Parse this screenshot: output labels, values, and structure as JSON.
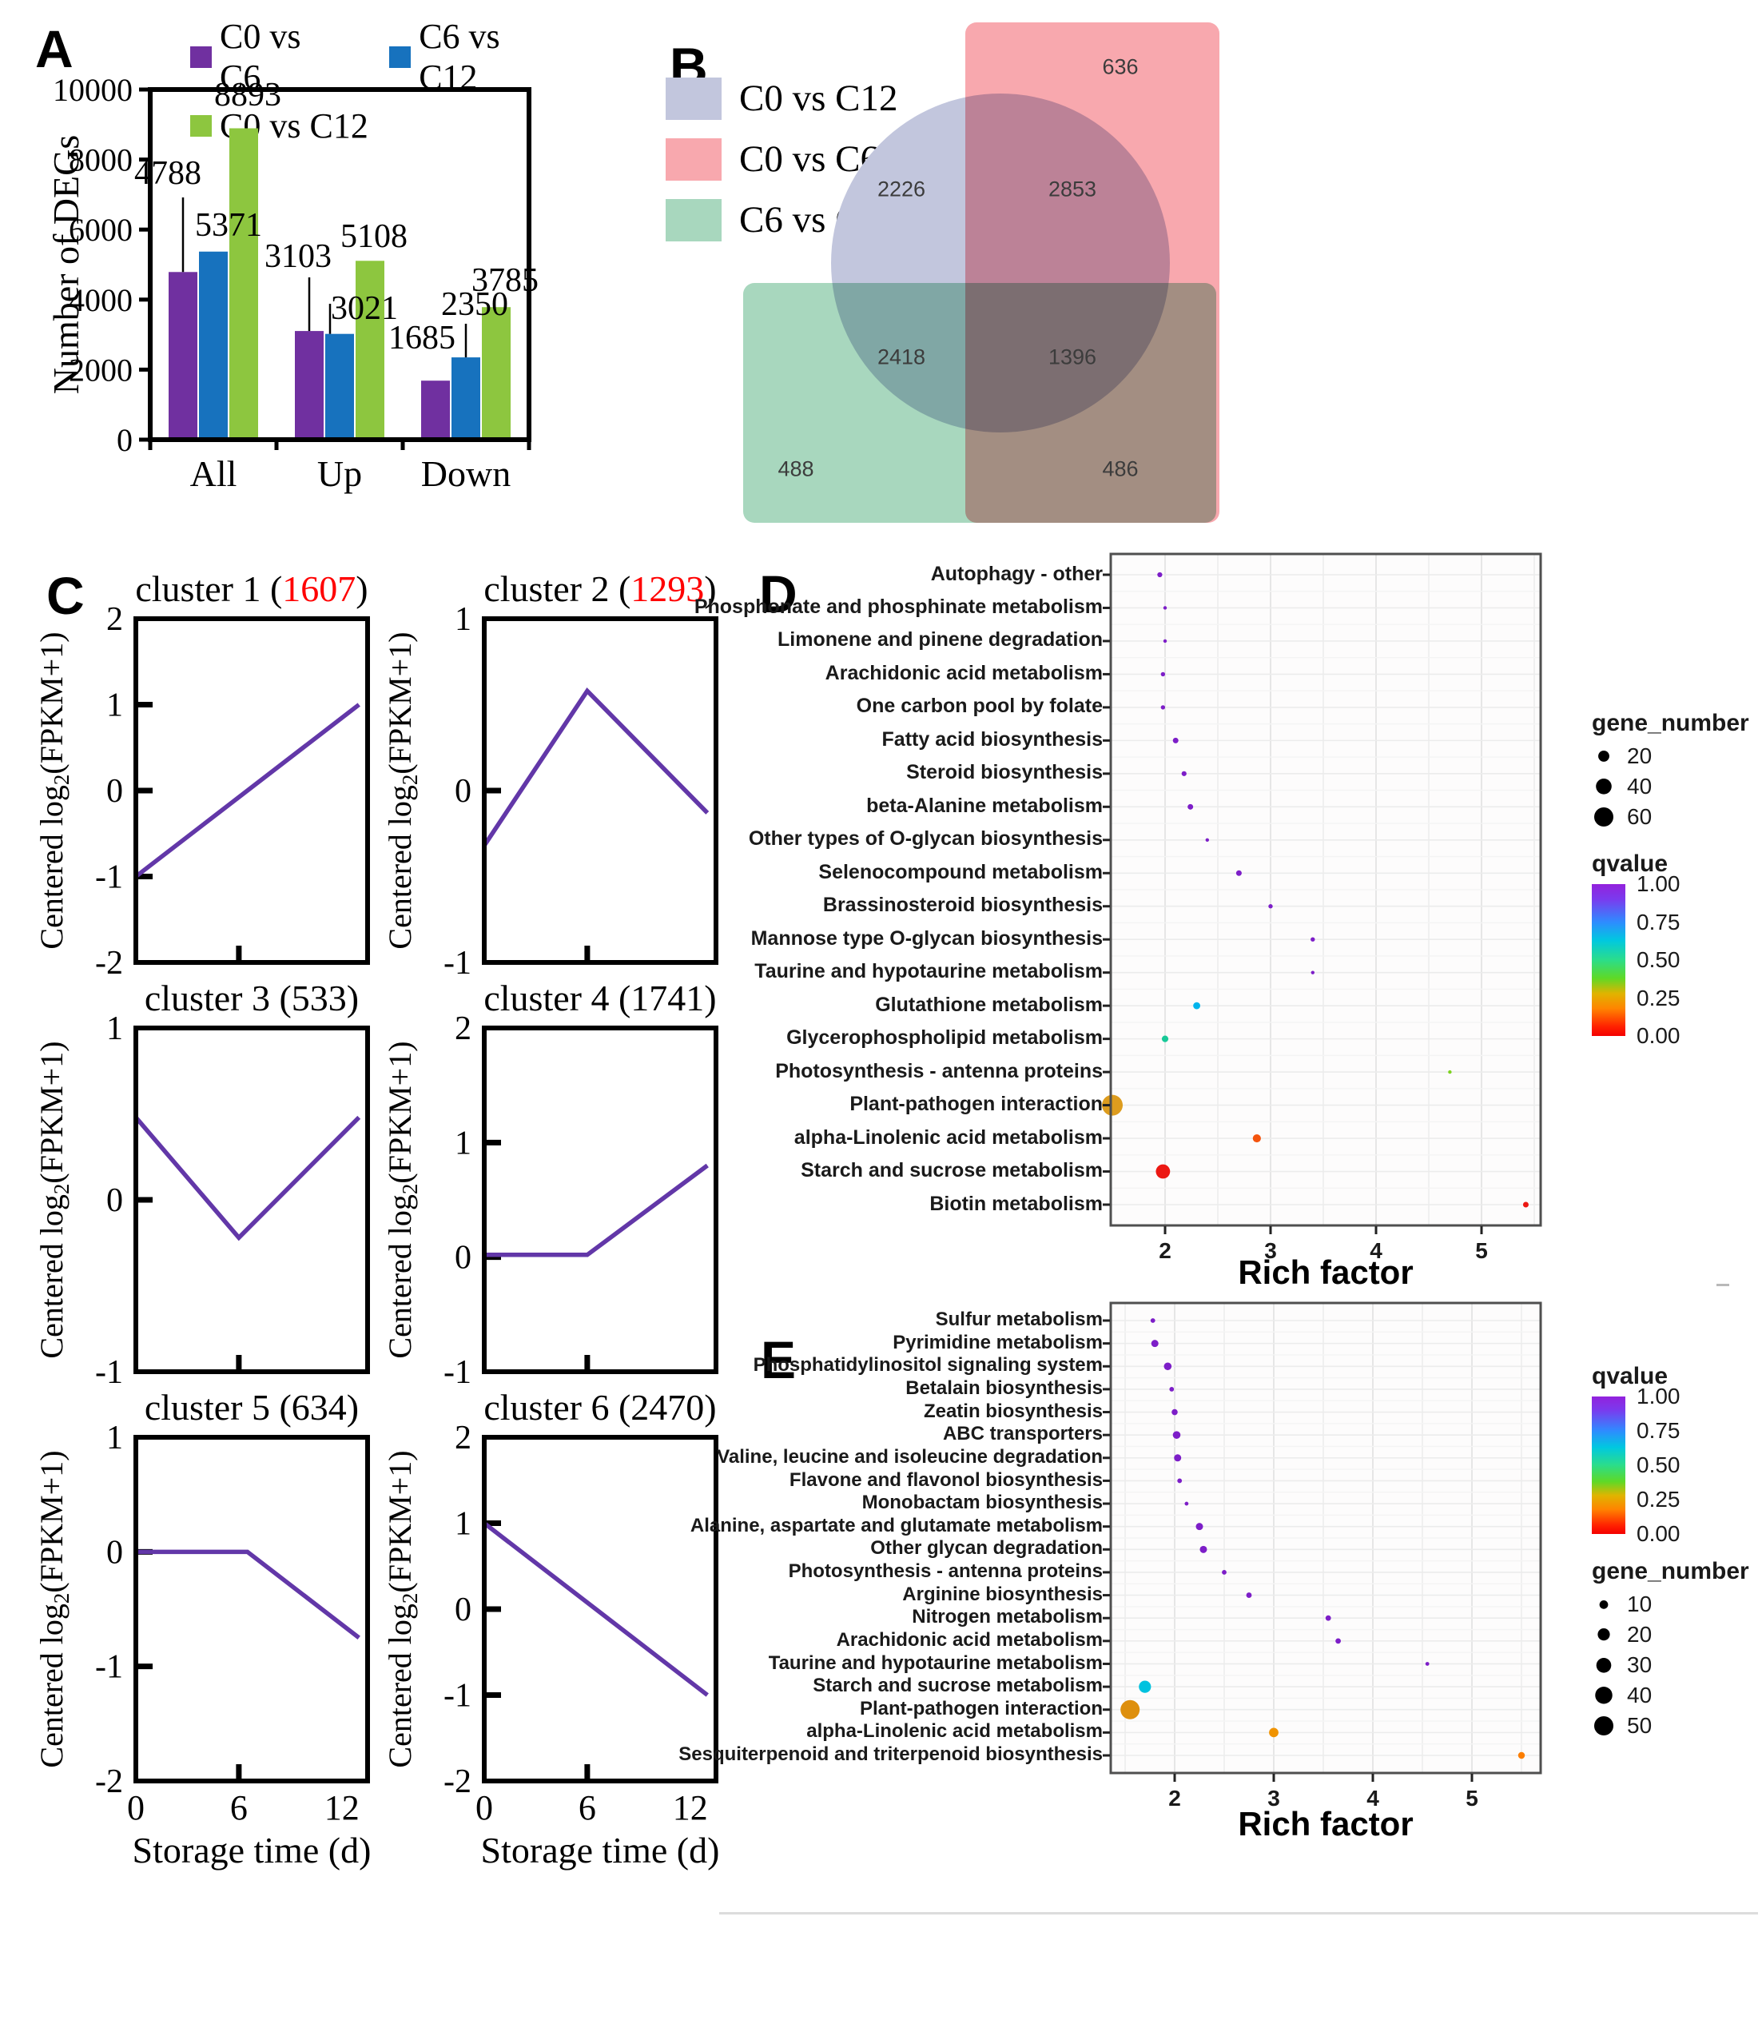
{
  "chart_data": [
    {
      "panel": "A",
      "type": "bar",
      "ylabel": "Number of DEGs",
      "ylim": [
        0,
        10000
      ],
      "yticks": [
        0,
        2000,
        4000,
        6000,
        8000,
        10000
      ],
      "categories": [
        "All",
        "Up",
        "Down"
      ],
      "series": [
        {
          "name": "C0 vs C6",
          "color": "#7030A0",
          "values": [
            4788,
            3103,
            1685
          ]
        },
        {
          "name": "C6 vs C12",
          "color": "#1772BE",
          "values": [
            5371,
            3021,
            2350
          ]
        },
        {
          "name": "C0 vs C12",
          "color": "#8DC63F",
          "values": [
            8893,
            5108,
            3785
          ]
        }
      ],
      "grid": false,
      "legend_position": "top"
    },
    {
      "panel": "B",
      "type": "venn",
      "legend": [
        {
          "label": "C0 vs C12",
          "color": "#C2C6DD"
        },
        {
          "label": "C0 vs C6",
          "color": "#F8A8AE"
        },
        {
          "label": "C6 vs C12",
          "color": "#A8D7BE"
        }
      ],
      "regions": [
        {
          "sets": [
            "C0 vs C6"
          ],
          "value": 636
        },
        {
          "sets": [
            "C0 vs C12"
          ],
          "value": 2226
        },
        {
          "sets": [
            "C0 vs C12",
            "C0 vs C6"
          ],
          "value": 2853
        },
        {
          "sets": [
            "C0 vs C12",
            "C6 vs C12"
          ],
          "value": 2418
        },
        {
          "sets": [
            "C0 vs C12",
            "C0 vs C6",
            "C6 vs C12"
          ],
          "value": 1396
        },
        {
          "sets": [
            "C6 vs C12"
          ],
          "value": 488
        },
        {
          "sets": [
            "C0 vs C6",
            "C6 vs C12"
          ],
          "value": 486
        }
      ]
    },
    {
      "panel": "C",
      "type": "line",
      "xlabel": "Storage time (d)",
      "ylabel": "Centered log2(FPKM+1)",
      "xlim": [
        0,
        13.5
      ],
      "xticks": [
        0,
        6,
        12
      ],
      "line_color": "#6237A8",
      "clusters": [
        {
          "name": "cluster 1",
          "count": "1607",
          "count_color": "#FF0000",
          "ylim": [
            -2,
            2
          ],
          "yticks": [
            -2,
            -1,
            0,
            1,
            2
          ],
          "points": [
            [
              0,
              -1
            ],
            [
              13,
              1
            ]
          ]
        },
        {
          "name": "cluster 2",
          "count": "1293",
          "count_color": "#FF0000",
          "ylim": [
            -1,
            1
          ],
          "yticks": [
            -1,
            0,
            1
          ],
          "points": [
            [
              0,
              -0.32
            ],
            [
              6,
              0.58
            ],
            [
              13,
              -0.13
            ]
          ]
        },
        {
          "name": "cluster 3",
          "count": "533",
          "count_color": "#000000",
          "ylim": [
            -1,
            1
          ],
          "yticks": [
            -1,
            0,
            1
          ],
          "points": [
            [
              0,
              0.48
            ],
            [
              6,
              -0.22
            ],
            [
              13,
              0.48
            ]
          ]
        },
        {
          "name": "cluster 4",
          "count": "1741",
          "count_color": "#000000",
          "ylim": [
            -1,
            2
          ],
          "yticks": [
            -1,
            0,
            1,
            2
          ],
          "points": [
            [
              0,
              0.02
            ],
            [
              6,
              0.02
            ],
            [
              13,
              0.8
            ]
          ]
        },
        {
          "name": "cluster 5",
          "count": "634",
          "count_color": "#000000",
          "ylim": [
            -2,
            1
          ],
          "yticks": [
            -2,
            -1,
            0,
            1
          ],
          "points": [
            [
              0,
              0
            ],
            [
              6.5,
              0
            ],
            [
              13,
              -0.75
            ]
          ]
        },
        {
          "name": "cluster 6",
          "count": "2470",
          "count_color": "#000000",
          "ylim": [
            -2,
            2
          ],
          "yticks": [
            -2,
            -1,
            0,
            1,
            2
          ],
          "points": [
            [
              0,
              1
            ],
            [
              13,
              -1
            ]
          ]
        }
      ]
    },
    {
      "panel": "D",
      "type": "scatter",
      "xlabel": "Rich factor",
      "xticks": [
        2,
        3,
        4,
        5
      ],
      "size_legend": {
        "title": "gene_number",
        "sizes": [
          20,
          40,
          60
        ]
      },
      "color_legend": {
        "title": "qvalue",
        "ticks": [
          "1.00",
          "0.75",
          "0.50",
          "0.25",
          "0.00"
        ]
      },
      "pathways": [
        {
          "label": "Autophagy - other",
          "rich_factor": 1.95,
          "gene_number": 4,
          "qvalue": 0.95,
          "color": "#7D1EC8"
        },
        {
          "label": "Phosphonate and phosphinate metabolism",
          "rich_factor": 2.0,
          "gene_number": 2,
          "qvalue": 0.95,
          "color": "#7D1EC8"
        },
        {
          "label": "Limonene and pinene degradation",
          "rich_factor": 2.0,
          "gene_number": 2,
          "qvalue": 0.95,
          "color": "#7D1EC8"
        },
        {
          "label": "Arachidonic acid metabolism",
          "rich_factor": 1.98,
          "gene_number": 3,
          "qvalue": 0.95,
          "color": "#7D1EC8"
        },
        {
          "label": "One carbon pool by folate",
          "rich_factor": 1.98,
          "gene_number": 3,
          "qvalue": 0.95,
          "color": "#7D1EC8"
        },
        {
          "label": "Fatty acid biosynthesis",
          "rich_factor": 2.1,
          "gene_number": 5,
          "qvalue": 0.9,
          "color": "#7D1EC8"
        },
        {
          "label": "Steroid biosynthesis",
          "rich_factor": 2.18,
          "gene_number": 4,
          "qvalue": 0.9,
          "color": "#7D1EC8"
        },
        {
          "label": "beta-Alanine metabolism",
          "rich_factor": 2.24,
          "gene_number": 5,
          "qvalue": 0.9,
          "color": "#7D1EC8"
        },
        {
          "label": "Other types of O-glycan biosynthesis",
          "rich_factor": 2.4,
          "gene_number": 2,
          "qvalue": 0.95,
          "color": "#7D1EC8"
        },
        {
          "label": "Selenocompound metabolism",
          "rich_factor": 2.7,
          "gene_number": 5,
          "qvalue": 0.9,
          "color": "#7D1EC8"
        },
        {
          "label": "Brassinosteroid biosynthesis",
          "rich_factor": 3.0,
          "gene_number": 3,
          "qvalue": 0.9,
          "color": "#7D1EC8"
        },
        {
          "label": "Mannose type O-glycan biosynthesis",
          "rich_factor": 3.4,
          "gene_number": 3,
          "qvalue": 0.9,
          "color": "#7D1EC8"
        },
        {
          "label": "Taurine and hypotaurine metabolism",
          "rich_factor": 3.4,
          "gene_number": 2,
          "qvalue": 0.9,
          "color": "#7D1EC8"
        },
        {
          "label": "Glutathione metabolism",
          "rich_factor": 2.3,
          "gene_number": 8,
          "qvalue": 0.62,
          "color": "#00B4EC"
        },
        {
          "label": "Glycerophospholipid metabolism",
          "rich_factor": 2.0,
          "gene_number": 7,
          "qvalue": 0.5,
          "color": "#17C998"
        },
        {
          "label": "Photosynthesis - antenna proteins",
          "rich_factor": 4.7,
          "gene_number": 2,
          "qvalue": 0.3,
          "color": "#7ED321"
        },
        {
          "label": "Plant-pathogen interaction",
          "rich_factor": 1.5,
          "gene_number": 70,
          "qvalue": 0.13,
          "color": "#DD9C1E"
        },
        {
          "label": "alpha-Linolenic acid metabolism",
          "rich_factor": 2.87,
          "gene_number": 11,
          "qvalue": 0.06,
          "color": "#F4540E"
        },
        {
          "label": "Starch and sucrose metabolism",
          "rich_factor": 1.98,
          "gene_number": 33,
          "qvalue": 0.01,
          "color": "#EC1813"
        },
        {
          "label": "Biotin metabolism",
          "rich_factor": 5.42,
          "gene_number": 5,
          "qvalue": 0.01,
          "color": "#EC1813"
        }
      ]
    },
    {
      "panel": "E",
      "type": "scatter",
      "xlabel": "Rich factor",
      "xticks": [
        2,
        3,
        4,
        5
      ],
      "size_legend": {
        "title": "gene_number",
        "sizes": [
          10,
          20,
          30,
          40,
          50
        ]
      },
      "color_legend": {
        "title": "qvalue",
        "ticks": [
          "1.00",
          "0.75",
          "0.50",
          "0.25",
          "0.00"
        ]
      },
      "pathways": [
        {
          "label": "Sulfur metabolism",
          "rich_factor": 1.78,
          "gene_number": 3,
          "qvalue": 0.95,
          "color": "#7D1EC8"
        },
        {
          "label": "Pyrimidine metabolism",
          "rich_factor": 1.8,
          "gene_number": 7,
          "qvalue": 0.95,
          "color": "#7D1EC8"
        },
        {
          "label": "Phosphatidylinositol signaling system",
          "rich_factor": 1.93,
          "gene_number": 8,
          "qvalue": 0.95,
          "color": "#7D1EC8"
        },
        {
          "label": "Betalain biosynthesis",
          "rich_factor": 1.97,
          "gene_number": 3,
          "qvalue": 0.95,
          "color": "#7D1EC8"
        },
        {
          "label": "Zeatin biosynthesis",
          "rich_factor": 2.0,
          "gene_number": 5,
          "qvalue": 0.95,
          "color": "#7D1EC8"
        },
        {
          "label": "ABC transporters",
          "rich_factor": 2.02,
          "gene_number": 8,
          "qvalue": 0.95,
          "color": "#7D1EC8"
        },
        {
          "label": "Valine, leucine and isoleucine degradation",
          "rich_factor": 2.03,
          "gene_number": 7,
          "qvalue": 0.95,
          "color": "#7D1EC8"
        },
        {
          "label": "Flavone and flavonol biosynthesis",
          "rich_factor": 2.05,
          "gene_number": 3,
          "qvalue": 0.95,
          "color": "#7D1EC8"
        },
        {
          "label": "Monobactam biosynthesis",
          "rich_factor": 2.12,
          "gene_number": 2,
          "qvalue": 0.95,
          "color": "#7D1EC8"
        },
        {
          "label": "Alanine, aspartate and glutamate metabolism",
          "rich_factor": 2.25,
          "gene_number": 7,
          "qvalue": 0.9,
          "color": "#7D1EC8"
        },
        {
          "label": "Other glycan degradation",
          "rich_factor": 2.29,
          "gene_number": 7,
          "qvalue": 0.9,
          "color": "#7D1EC8"
        },
        {
          "label": "Photosynthesis - antenna proteins",
          "rich_factor": 2.5,
          "gene_number": 3,
          "qvalue": 0.9,
          "color": "#7D1EC8"
        },
        {
          "label": "Arginine biosynthesis",
          "rich_factor": 2.75,
          "gene_number": 4,
          "qvalue": 0.9,
          "color": "#7D1EC8"
        },
        {
          "label": "Nitrogen metabolism",
          "rich_factor": 3.55,
          "gene_number": 4,
          "qvalue": 0.9,
          "color": "#7D1EC8"
        },
        {
          "label": "Arachidonic acid metabolism",
          "rich_factor": 3.65,
          "gene_number": 4,
          "qvalue": 0.9,
          "color": "#7D1EC8"
        },
        {
          "label": "Taurine and hypotaurine metabolism",
          "rich_factor": 4.55,
          "gene_number": 2,
          "qvalue": 0.9,
          "color": "#7D1EC8"
        },
        {
          "label": "Starch and sucrose metabolism",
          "rich_factor": 1.7,
          "gene_number": 20,
          "qvalue": 0.6,
          "color": "#00C2DF"
        },
        {
          "label": "Plant-pathogen interaction",
          "rich_factor": 1.55,
          "gene_number": 50,
          "qvalue": 0.13,
          "color": "#DE8F0D"
        },
        {
          "label": "alpha-Linolenic acid metabolism",
          "rich_factor": 3.0,
          "gene_number": 12,
          "qvalue": 0.1,
          "color": "#F09300"
        },
        {
          "label": "Sesquiterpenoid and triterpenoid biosynthesis",
          "rich_factor": 5.5,
          "gene_number": 6,
          "qvalue": 0.1,
          "color": "#FC7E00"
        }
      ]
    }
  ]
}
